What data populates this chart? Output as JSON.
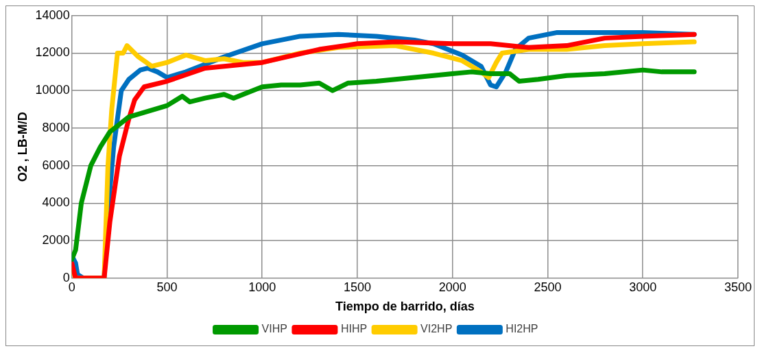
{
  "chart_data": {
    "type": "line",
    "xlabel": "Tiempo de barrido, días",
    "ylabel": "O2 , LB-M/D",
    "xlim": [
      0,
      3500
    ],
    "xticks": [
      0,
      500,
      1000,
      1500,
      2000,
      2500,
      3000,
      3500
    ],
    "ylim": [
      0,
      14000
    ],
    "yticks": [
      0,
      2000,
      4000,
      6000,
      8000,
      10000,
      12000,
      14000
    ],
    "grid": true,
    "legend": "bottom",
    "marker": "none",
    "line_style": "solid",
    "series": [
      {
        "name": "VIHP",
        "color": "#009900",
        "x": [
          0,
          20,
          50,
          100,
          150,
          200,
          300,
          400,
          500,
          580,
          620,
          700,
          800,
          850,
          1000,
          1100,
          1200,
          1300,
          1370,
          1450,
          1600,
          1800,
          2000,
          2100,
          2200,
          2300,
          2350,
          2450,
          2600,
          2800,
          3000,
          3100,
          3270
        ],
        "values": [
          1000,
          1500,
          4000,
          6000,
          7000,
          7800,
          8600,
          8900,
          9200,
          9700,
          9400,
          9600,
          9800,
          9600,
          10200,
          10300,
          10300,
          10400,
          10000,
          10400,
          10500,
          10700,
          10900,
          11000,
          10900,
          10900,
          10500,
          10600,
          10800,
          10900,
          11100,
          11000,
          11000
        ]
      },
      {
        "name": "HIHP",
        "color": "#ff0000",
        "x": [
          0,
          20,
          170,
          200,
          250,
          300,
          330,
          380,
          500,
          700,
          1000,
          1300,
          1500,
          1700,
          2000,
          2200,
          2400,
          2600,
          2800,
          3000,
          3270
        ],
        "values": [
          800,
          0,
          0,
          3000,
          6500,
          8500,
          9500,
          10200,
          10500,
          11200,
          11500,
          12200,
          12500,
          12600,
          12500,
          12500,
          12300,
          12400,
          12800,
          12900,
          13000
        ]
      },
      {
        "name": "VI2HP",
        "color": "#ffcc00",
        "x": [
          0,
          20,
          170,
          190,
          210,
          240,
          270,
          290,
          350,
          420,
          500,
          600,
          700,
          800,
          900,
          1000,
          1200,
          1400,
          1700,
          1900,
          2050,
          2150,
          2190,
          2230,
          2260,
          2400,
          2600,
          2800,
          3000,
          3270
        ],
        "values": [
          500,
          0,
          0,
          6000,
          9000,
          12000,
          12000,
          12400,
          11800,
          11300,
          11500,
          11900,
          11600,
          11700,
          11500,
          11500,
          12000,
          12300,
          12400,
          12000,
          11600,
          11000,
          10700,
          11500,
          12000,
          12200,
          12200,
          12400,
          12500,
          12600
        ]
      },
      {
        "name": "HI2HP",
        "color": "#0070c0",
        "x": [
          0,
          20,
          30,
          60,
          170,
          190,
          220,
          260,
          300,
          360,
          400,
          450,
          500,
          600,
          800,
          1000,
          1200,
          1400,
          1600,
          1800,
          1900,
          2050,
          2150,
          2200,
          2230,
          2280,
          2330,
          2400,
          2550,
          3000,
          3270
        ],
        "values": [
          1200,
          800,
          200,
          0,
          0,
          3500,
          7000,
          10000,
          10600,
          11100,
          11200,
          11000,
          10700,
          11000,
          11800,
          12500,
          12900,
          13000,
          12900,
          12700,
          12500,
          11900,
          11300,
          10300,
          10200,
          11000,
          12200,
          12800,
          13100,
          13100,
          13000
        ]
      }
    ]
  }
}
